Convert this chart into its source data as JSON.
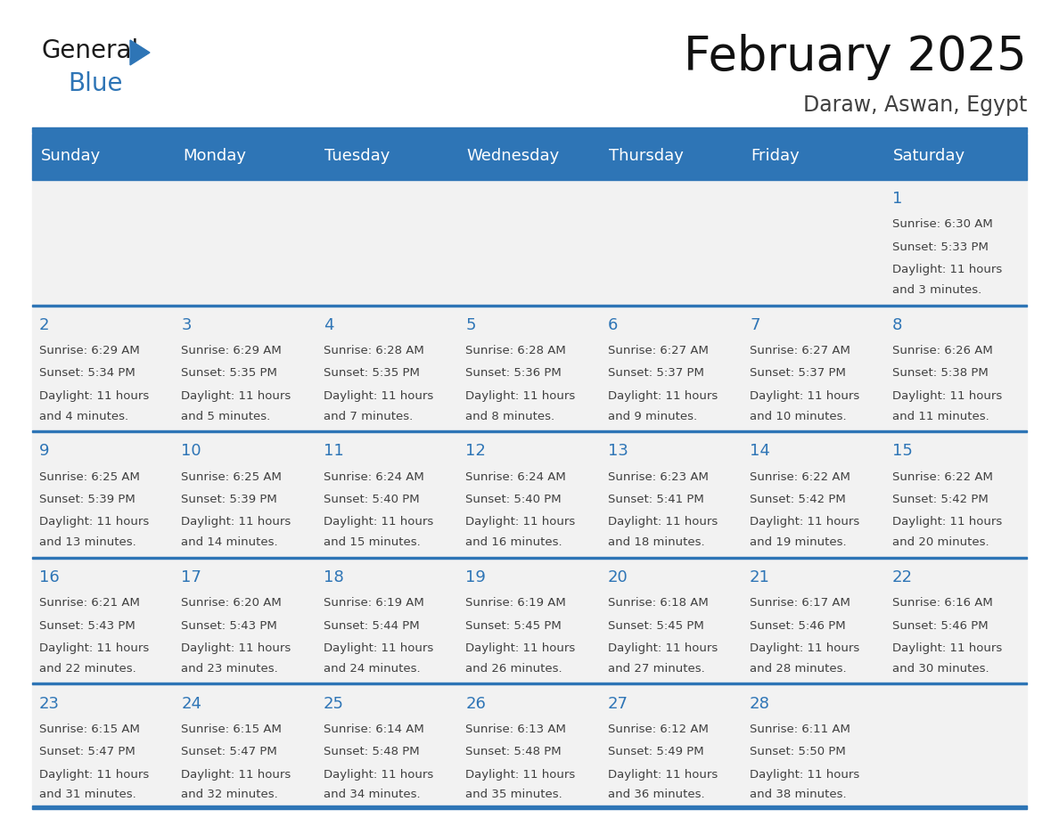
{
  "title": "February 2025",
  "subtitle": "Daraw, Aswan, Egypt",
  "days_of_week": [
    "Sunday",
    "Monday",
    "Tuesday",
    "Wednesday",
    "Thursday",
    "Friday",
    "Saturday"
  ],
  "header_bg": "#2E75B6",
  "header_text": "#FFFFFF",
  "cell_bg": "#F2F2F2",
  "divider_color": "#2E75B6",
  "text_color": "#404040",
  "day_num_color": "#2E75B6",
  "title_fontsize": 38,
  "subtitle_fontsize": 17,
  "header_fontsize": 13,
  "day_num_fontsize": 13,
  "cell_text_fontsize": 9.5,
  "calendar_data": [
    [
      null,
      null,
      null,
      null,
      null,
      null,
      {
        "day": 1,
        "sunrise": "6:30 AM",
        "sunset": "5:33 PM",
        "dl1": "Daylight: 11 hours",
        "dl2": "and 3 minutes."
      }
    ],
    [
      {
        "day": 2,
        "sunrise": "6:29 AM",
        "sunset": "5:34 PM",
        "dl1": "Daylight: 11 hours",
        "dl2": "and 4 minutes."
      },
      {
        "day": 3,
        "sunrise": "6:29 AM",
        "sunset": "5:35 PM",
        "dl1": "Daylight: 11 hours",
        "dl2": "and 5 minutes."
      },
      {
        "day": 4,
        "sunrise": "6:28 AM",
        "sunset": "5:35 PM",
        "dl1": "Daylight: 11 hours",
        "dl2": "and 7 minutes."
      },
      {
        "day": 5,
        "sunrise": "6:28 AM",
        "sunset": "5:36 PM",
        "dl1": "Daylight: 11 hours",
        "dl2": "and 8 minutes."
      },
      {
        "day": 6,
        "sunrise": "6:27 AM",
        "sunset": "5:37 PM",
        "dl1": "Daylight: 11 hours",
        "dl2": "and 9 minutes."
      },
      {
        "day": 7,
        "sunrise": "6:27 AM",
        "sunset": "5:37 PM",
        "dl1": "Daylight: 11 hours",
        "dl2": "and 10 minutes."
      },
      {
        "day": 8,
        "sunrise": "6:26 AM",
        "sunset": "5:38 PM",
        "dl1": "Daylight: 11 hours",
        "dl2": "and 11 minutes."
      }
    ],
    [
      {
        "day": 9,
        "sunrise": "6:25 AM",
        "sunset": "5:39 PM",
        "dl1": "Daylight: 11 hours",
        "dl2": "and 13 minutes."
      },
      {
        "day": 10,
        "sunrise": "6:25 AM",
        "sunset": "5:39 PM",
        "dl1": "Daylight: 11 hours",
        "dl2": "and 14 minutes."
      },
      {
        "day": 11,
        "sunrise": "6:24 AM",
        "sunset": "5:40 PM",
        "dl1": "Daylight: 11 hours",
        "dl2": "and 15 minutes."
      },
      {
        "day": 12,
        "sunrise": "6:24 AM",
        "sunset": "5:40 PM",
        "dl1": "Daylight: 11 hours",
        "dl2": "and 16 minutes."
      },
      {
        "day": 13,
        "sunrise": "6:23 AM",
        "sunset": "5:41 PM",
        "dl1": "Daylight: 11 hours",
        "dl2": "and 18 minutes."
      },
      {
        "day": 14,
        "sunrise": "6:22 AM",
        "sunset": "5:42 PM",
        "dl1": "Daylight: 11 hours",
        "dl2": "and 19 minutes."
      },
      {
        "day": 15,
        "sunrise": "6:22 AM",
        "sunset": "5:42 PM",
        "dl1": "Daylight: 11 hours",
        "dl2": "and 20 minutes."
      }
    ],
    [
      {
        "day": 16,
        "sunrise": "6:21 AM",
        "sunset": "5:43 PM",
        "dl1": "Daylight: 11 hours",
        "dl2": "and 22 minutes."
      },
      {
        "day": 17,
        "sunrise": "6:20 AM",
        "sunset": "5:43 PM",
        "dl1": "Daylight: 11 hours",
        "dl2": "and 23 minutes."
      },
      {
        "day": 18,
        "sunrise": "6:19 AM",
        "sunset": "5:44 PM",
        "dl1": "Daylight: 11 hours",
        "dl2": "and 24 minutes."
      },
      {
        "day": 19,
        "sunrise": "6:19 AM",
        "sunset": "5:45 PM",
        "dl1": "Daylight: 11 hours",
        "dl2": "and 26 minutes."
      },
      {
        "day": 20,
        "sunrise": "6:18 AM",
        "sunset": "5:45 PM",
        "dl1": "Daylight: 11 hours",
        "dl2": "and 27 minutes."
      },
      {
        "day": 21,
        "sunrise": "6:17 AM",
        "sunset": "5:46 PM",
        "dl1": "Daylight: 11 hours",
        "dl2": "and 28 minutes."
      },
      {
        "day": 22,
        "sunrise": "6:16 AM",
        "sunset": "5:46 PM",
        "dl1": "Daylight: 11 hours",
        "dl2": "and 30 minutes."
      }
    ],
    [
      {
        "day": 23,
        "sunrise": "6:15 AM",
        "sunset": "5:47 PM",
        "dl1": "Daylight: 11 hours",
        "dl2": "and 31 minutes."
      },
      {
        "day": 24,
        "sunrise": "6:15 AM",
        "sunset": "5:47 PM",
        "dl1": "Daylight: 11 hours",
        "dl2": "and 32 minutes."
      },
      {
        "day": 25,
        "sunrise": "6:14 AM",
        "sunset": "5:48 PM",
        "dl1": "Daylight: 11 hours",
        "dl2": "and 34 minutes."
      },
      {
        "day": 26,
        "sunrise": "6:13 AM",
        "sunset": "5:48 PM",
        "dl1": "Daylight: 11 hours",
        "dl2": "and 35 minutes."
      },
      {
        "day": 27,
        "sunrise": "6:12 AM",
        "sunset": "5:49 PM",
        "dl1": "Daylight: 11 hours",
        "dl2": "and 36 minutes."
      },
      {
        "day": 28,
        "sunrise": "6:11 AM",
        "sunset": "5:50 PM",
        "dl1": "Daylight: 11 hours",
        "dl2": "and 38 minutes."
      },
      null
    ]
  ]
}
